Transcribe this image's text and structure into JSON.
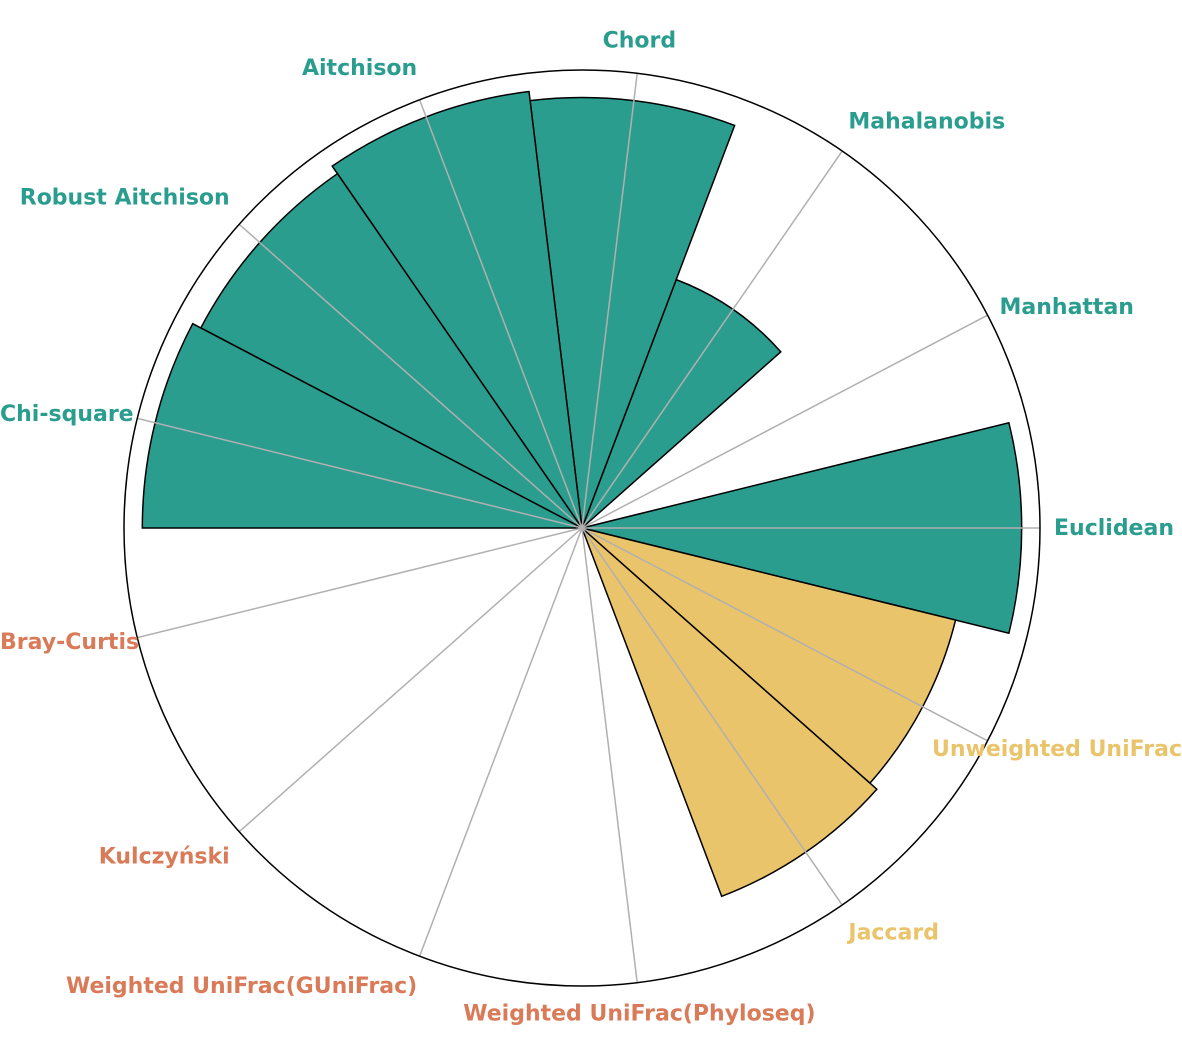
{
  "colors": {
    "teal": "#2a9d8f",
    "yellow": "#e9c46a",
    "orange": "#d97b59",
    "outline": "#000000",
    "grid": "#b0b0b0"
  },
  "chart_data": {
    "type": "polar-bar",
    "title": "",
    "rmax": 1.0,
    "grid": true,
    "direction": "counterclockwise",
    "start_angle_deg": 0,
    "categories": [
      {
        "label": "Euclidean",
        "value": 0.96,
        "group": "teal"
      },
      {
        "label": "Manhattan",
        "value": 0.0,
        "group": "teal"
      },
      {
        "label": "Mahalanobis",
        "value": 0.58,
        "group": "teal"
      },
      {
        "label": "Chord",
        "value": 0.94,
        "group": "teal"
      },
      {
        "label": "Aitchison",
        "value": 0.96,
        "group": "teal"
      },
      {
        "label": "Robust Aitchison",
        "value": 0.94,
        "group": "teal"
      },
      {
        "label": "Chi-square",
        "value": 0.96,
        "group": "teal"
      },
      {
        "label": "Bray-Curtis",
        "value": 0.0,
        "group": "orange"
      },
      {
        "label": "Kulczyński",
        "value": 0.0,
        "group": "orange"
      },
      {
        "label": "Weighted UniFrac(GUniFrac)",
        "value": 0.0,
        "group": "orange"
      },
      {
        "label": "Weighted UniFrac(Phyloseq)",
        "value": 0.0,
        "group": "orange"
      },
      {
        "label": "Jaccard",
        "value": 0.86,
        "group": "yellow"
      },
      {
        "label": "Unweighted UniFrac",
        "value": 0.84,
        "group": "yellow"
      }
    ]
  }
}
